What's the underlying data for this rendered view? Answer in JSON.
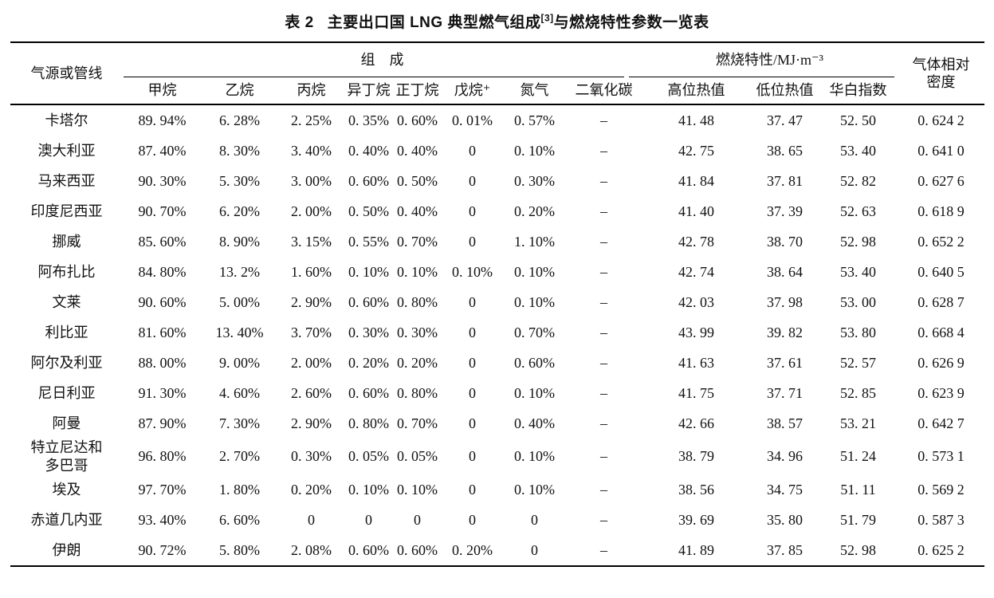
{
  "title": {
    "label": "表 2",
    "text_main": "主要出口国 LNG 典型燃气组成",
    "citation": "[3]",
    "text_rest": "与燃烧特性参数一览表"
  },
  "table": {
    "header": {
      "source_col": "气源或管线",
      "composition_group": "组　成",
      "combustion_group": "燃烧特性/MJ·m⁻³",
      "density_col": "气体相对\n密度",
      "composition_cols": [
        "甲烷",
        "乙烷",
        "丙烷",
        "异丁烷",
        "正丁烷",
        "戊烷⁺",
        "氮气",
        "二氧化碳"
      ],
      "combustion_cols": [
        "高位热值",
        "低位热值",
        "华白指数"
      ],
      "col_keys": [
        "methane",
        "ethane",
        "propane",
        "isobutane",
        "n-butane",
        "pentane-plus",
        "nitrogen",
        "carbon-dioxide",
        "hhv",
        "lhv",
        "wobbe-index",
        "relative-density"
      ]
    },
    "rows": [
      {
        "name": "卡塔尔",
        "cells": [
          "89. 94%",
          "6. 28%",
          "2. 25%",
          "0. 35%",
          "0. 60%",
          "0. 01%",
          "0. 57%",
          "–",
          "41. 48",
          "37. 47",
          "52. 50",
          "0. 624 2"
        ]
      },
      {
        "name": "澳大利亚",
        "cells": [
          "87. 40%",
          "8. 30%",
          "3. 40%",
          "0. 40%",
          "0. 40%",
          "0",
          "0. 10%",
          "–",
          "42. 75",
          "38. 65",
          "53. 40",
          "0. 641 0"
        ]
      },
      {
        "name": "马来西亚",
        "cells": [
          "90. 30%",
          "5. 30%",
          "3. 00%",
          "0. 60%",
          "0. 50%",
          "0",
          "0. 30%",
          "–",
          "41. 84",
          "37. 81",
          "52. 82",
          "0. 627 6"
        ]
      },
      {
        "name": "印度尼西亚",
        "cells": [
          "90. 70%",
          "6. 20%",
          "2. 00%",
          "0. 50%",
          "0. 40%",
          "0",
          "0. 20%",
          "–",
          "41. 40",
          "37. 39",
          "52. 63",
          "0. 618 9"
        ]
      },
      {
        "name": "挪威",
        "cells": [
          "85. 60%",
          "8. 90%",
          "3. 15%",
          "0. 55%",
          "0. 70%",
          "0",
          "1. 10%",
          "–",
          "42. 78",
          "38. 70",
          "52. 98",
          "0. 652 2"
        ]
      },
      {
        "name": "阿布扎比",
        "cells": [
          "84. 80%",
          "13. 2%",
          "1. 60%",
          "0. 10%",
          "0. 10%",
          "0. 10%",
          "0. 10%",
          "–",
          "42. 74",
          "38. 64",
          "53. 40",
          "0. 640 5"
        ]
      },
      {
        "name": "文莱",
        "cells": [
          "90. 60%",
          "5. 00%",
          "2. 90%",
          "0. 60%",
          "0. 80%",
          "0",
          "0. 10%",
          "–",
          "42. 03",
          "37. 98",
          "53. 00",
          "0. 628 7"
        ]
      },
      {
        "name": "利比亚",
        "cells": [
          "81. 60%",
          "13. 40%",
          "3. 70%",
          "0. 30%",
          "0. 30%",
          "0",
          "0. 70%",
          "–",
          "43. 99",
          "39. 82",
          "53. 80",
          "0. 668 4"
        ]
      },
      {
        "name": "阿尔及利亚",
        "cells": [
          "88. 00%",
          "9. 00%",
          "2. 00%",
          "0. 20%",
          "0. 20%",
          "0",
          "0. 60%",
          "–",
          "41. 63",
          "37. 61",
          "52. 57",
          "0. 626 9"
        ]
      },
      {
        "name": "尼日利亚",
        "cells": [
          "91. 30%",
          "4. 60%",
          "2. 60%",
          "0. 60%",
          "0. 80%",
          "0",
          "0. 10%",
          "–",
          "41. 75",
          "37. 71",
          "52. 85",
          "0. 623 9"
        ]
      },
      {
        "name": "阿曼",
        "cells": [
          "87. 90%",
          "7. 30%",
          "2. 90%",
          "0. 80%",
          "0. 70%",
          "0",
          "0. 40%",
          "–",
          "42. 66",
          "38. 57",
          "53. 21",
          "0. 642 7"
        ]
      },
      {
        "name": "特立尼达和\n多巴哥",
        "cells": [
          "96. 80%",
          "2. 70%",
          "0. 30%",
          "0. 05%",
          "0. 05%",
          "0",
          "0. 10%",
          "–",
          "38. 79",
          "34. 96",
          "51. 24",
          "0. 573 1"
        ]
      },
      {
        "name": "埃及",
        "cells": [
          "97. 70%",
          "1. 80%",
          "0. 20%",
          "0. 10%",
          "0. 10%",
          "0",
          "0. 10%",
          "–",
          "38. 56",
          "34. 75",
          "51. 11",
          "0. 569 2"
        ]
      },
      {
        "name": "赤道几内亚",
        "cells": [
          "93. 40%",
          "6. 60%",
          "0",
          "0",
          "0",
          "0",
          "0",
          "–",
          "39. 69",
          "35. 80",
          "51. 79",
          "0. 587 3"
        ]
      },
      {
        "name": "伊朗",
        "cells": [
          "90. 72%",
          "5. 80%",
          "2. 08%",
          "0. 60%",
          "0. 60%",
          "0. 20%",
          "0",
          "–",
          "41. 89",
          "37. 85",
          "52. 98",
          "0. 625 2"
        ]
      }
    ]
  }
}
